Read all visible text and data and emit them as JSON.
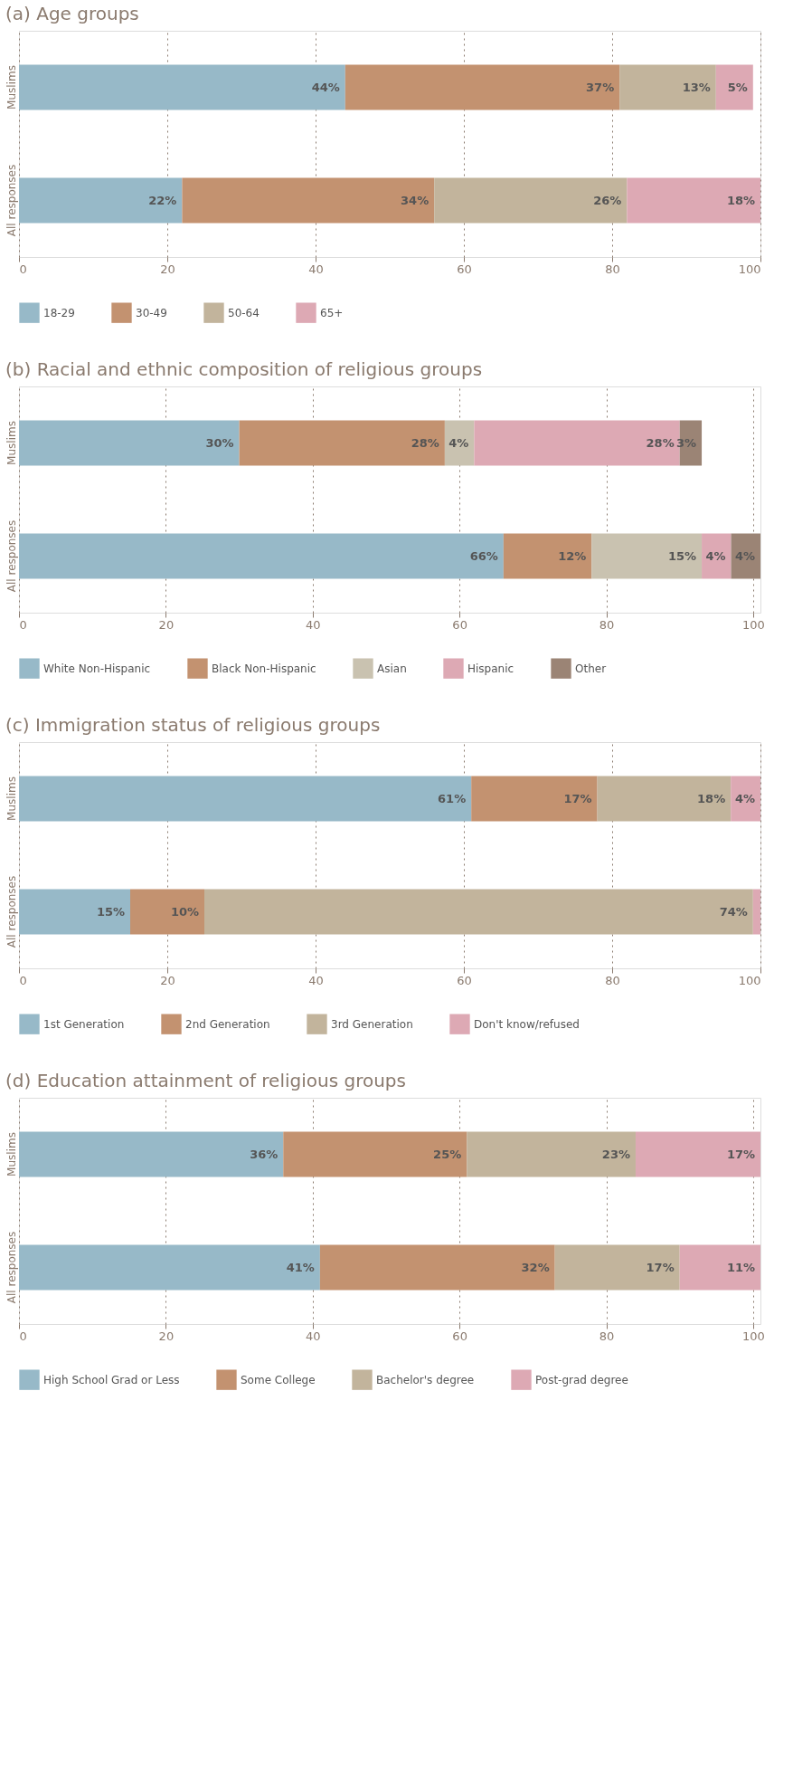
{
  "chart_data": [
    {
      "type": "bar",
      "orientation": "horizontal",
      "stacked": true,
      "title": "(a) Age groups",
      "categories": [
        "Muslims",
        "All responses"
      ],
      "xlim": [
        0,
        100
      ],
      "xticks": [
        0,
        20,
        40,
        60,
        80,
        100
      ],
      "grid": "x",
      "legend": "bottom",
      "series": [
        {
          "name": "18-29",
          "color": "#97b9c8",
          "values": [
            44,
            22
          ],
          "value_labels": [
            "44%",
            "22%"
          ]
        },
        {
          "name": "30-49",
          "color": "#c39270",
          "values": [
            37,
            34
          ],
          "value_labels": [
            "37%",
            "34%"
          ]
        },
        {
          "name": "50-64",
          "color": "#c2b49c",
          "values": [
            13,
            26
          ],
          "value_labels": [
            "13%",
            "26%"
          ]
        },
        {
          "name": "65+",
          "color": "#dda9b4",
          "values": [
            5,
            18
          ],
          "value_labels": [
            "5%",
            "18%"
          ]
        }
      ]
    },
    {
      "type": "bar",
      "orientation": "horizontal",
      "stacked": true,
      "title": "(b) Racial and ethnic composition of religious groups",
      "categories": [
        "Muslims",
        "All responses"
      ],
      "xlim": [
        0,
        101
      ],
      "xticks": [
        0,
        20,
        40,
        60,
        80,
        100
      ],
      "grid": "x",
      "legend": "bottom",
      "series": [
        {
          "name": "White Non-Hispanic",
          "color": "#97b9c8",
          "values": [
            30,
            66
          ],
          "value_labels": [
            "30%",
            "66%"
          ]
        },
        {
          "name": "Black Non-Hispanic",
          "color": "#c39270",
          "values": [
            28,
            12
          ],
          "value_labels": [
            "28%",
            "12%"
          ]
        },
        {
          "name": "Asian",
          "color": "#c9c2b0",
          "values": [
            4,
            15
          ],
          "value_labels": [
            "4%",
            "15%"
          ]
        },
        {
          "name": "Hispanic",
          "color": "#dda9b4",
          "values": [
            28,
            4
          ],
          "value_labels": [
            "28%",
            "4%"
          ]
        },
        {
          "name": "Other",
          "color": "#9b8475",
          "values": [
            3,
            4
          ],
          "value_labels": [
            "3%",
            "4%"
          ]
        }
      ]
    },
    {
      "type": "bar",
      "orientation": "horizontal",
      "stacked": true,
      "title": "(c) Immigration status of religious groups",
      "categories": [
        "Muslims",
        "All responses"
      ],
      "xlim": [
        0,
        100
      ],
      "xticks": [
        0,
        20,
        40,
        60,
        80,
        100
      ],
      "grid": "x",
      "legend": "bottom",
      "series": [
        {
          "name": "1st Generation",
          "color": "#97b9c8",
          "values": [
            61,
            15
          ],
          "value_labels": [
            "61%",
            "15%"
          ]
        },
        {
          "name": "2nd Generation",
          "color": "#c39270",
          "values": [
            17,
            10
          ],
          "value_labels": [
            "17%",
            "10%"
          ]
        },
        {
          "name": "3rd Generation",
          "color": "#c2b49c",
          "values": [
            18,
            74
          ],
          "value_labels": [
            "18%",
            "74%"
          ]
        },
        {
          "name": "Don't know/refused",
          "color": "#dda9b4",
          "values": [
            4,
            1
          ],
          "value_labels": [
            "4%",
            null
          ]
        }
      ]
    },
    {
      "type": "bar",
      "orientation": "horizontal",
      "stacked": true,
      "title": "(d) Education attainment of religious groups",
      "categories": [
        "Muslims",
        "All responses"
      ],
      "xlim": [
        0,
        101
      ],
      "xticks": [
        0,
        20,
        40,
        60,
        80,
        100
      ],
      "grid": "x",
      "legend": "bottom",
      "series": [
        {
          "name": "High School Grad or Less",
          "color": "#97b9c8",
          "values": [
            36,
            41
          ],
          "value_labels": [
            "36%",
            "41%"
          ]
        },
        {
          "name": "Some College",
          "color": "#c39270",
          "values": [
            25,
            32
          ],
          "value_labels": [
            "25%",
            "32%"
          ]
        },
        {
          "name": "Bachelor's degree",
          "color": "#c2b49c",
          "values": [
            23,
            17
          ],
          "value_labels": [
            "23%",
            "17%"
          ]
        },
        {
          "name": "Post-grad degree",
          "color": "#dda9b4",
          "values": [
            17,
            11
          ],
          "value_labels": [
            "17%",
            "11%"
          ]
        }
      ]
    }
  ]
}
